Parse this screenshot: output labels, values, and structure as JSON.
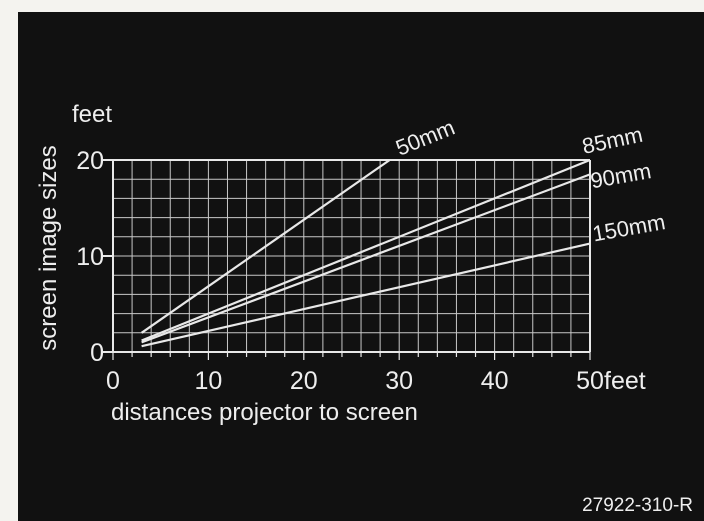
{
  "chart_data": {
    "type": "line",
    "title": "",
    "xlabel": "distances projector to screen",
    "xunit": "feet",
    "ylabel": "screen image sizes",
    "yunit": "feet",
    "xlim": [
      0,
      50
    ],
    "ylim": [
      0,
      20
    ],
    "xticks": [
      "0",
      "10",
      "20",
      "30",
      "40",
      "50"
    ],
    "yticks": [
      "0",
      "10",
      "20"
    ],
    "grid": true,
    "series": [
      {
        "name": "50mm",
        "x": [
          3,
          29
        ],
        "y": [
          2.0,
          20.0
        ]
      },
      {
        "name": "85mm",
        "x": [
          3,
          50
        ],
        "y": [
          1.2,
          20.0
        ]
      },
      {
        "name": "90mm",
        "x": [
          3,
          50
        ],
        "y": [
          1.0,
          18.5
        ]
      },
      {
        "name": "150mm",
        "x": [
          3,
          50
        ],
        "y": [
          0.6,
          11.3
        ]
      }
    ]
  },
  "footer_code": "27922-310-R",
  "colors": {
    "background": "#111111",
    "grid": "#c8c8c8",
    "lines": "#e8e8e8",
    "text": "#eeeeee"
  }
}
